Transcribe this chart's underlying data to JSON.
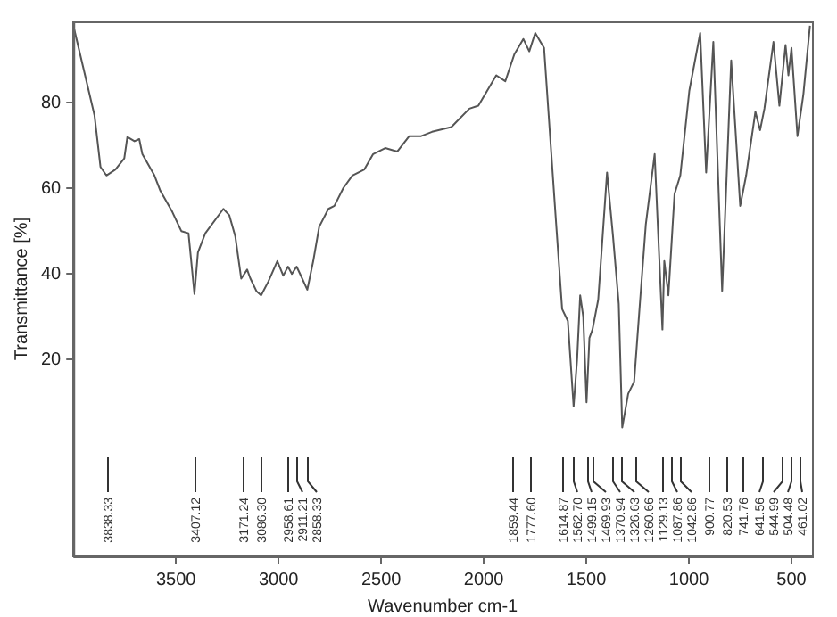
{
  "chart_data": {
    "type": "line",
    "xlabel": "Wavenumber cm-1",
    "ylabel": "Transmittance [%]",
    "xlim": [
      4000,
      400
    ],
    "xticks": [
      3500,
      3000,
      2500,
      2000,
      1500,
      1000,
      500
    ],
    "ylim": [
      -26,
      99
    ],
    "yticks": [
      20,
      40,
      60,
      80
    ],
    "grid": false,
    "legend": false,
    "marker": "none",
    "line_style": "solid",
    "series": [
      {
        "color": "#555555",
        "x": [
          4000,
          3897,
          3868,
          3839,
          3795,
          3752,
          3737,
          3702,
          3679,
          3664,
          3605,
          3576,
          3518,
          3474,
          3439,
          3410,
          3393,
          3357,
          3269,
          3240,
          3211,
          3182,
          3153,
          3138,
          3108,
          3085,
          3050,
          3006,
          2977,
          2954,
          2935,
          2912,
          2895,
          2860,
          2831,
          2802,
          2757,
          2728,
          2684,
          2640,
          2582,
          2539,
          2480,
          2421,
          2363,
          2305,
          2252,
          2158,
          2070,
          2026,
          1939,
          1895,
          1851,
          1807,
          1778,
          1749,
          1706,
          1647,
          1618,
          1590,
          1562,
          1545,
          1530,
          1515,
          1499,
          1485,
          1470,
          1442,
          1399,
          1370,
          1342,
          1325,
          1296,
          1267,
          1239,
          1210,
          1167,
          1129,
          1120,
          1100,
          1070,
          1042,
          998,
          945,
          916,
          881,
          838,
          794,
          750,
          721,
          676,
          653,
          632,
          588,
          559,
          529,
          515,
          500,
          471,
          442,
          410
        ],
        "values": [
          98,
          77,
          65,
          63,
          64.4,
          67,
          72,
          71,
          71.5,
          68,
          63,
          59.4,
          54.5,
          50,
          49.5,
          35.3,
          45,
          49.5,
          55.2,
          53.7,
          48.8,
          38.9,
          41,
          39,
          36,
          35,
          38.2,
          43,
          39.6,
          41.7,
          40,
          41.7,
          40,
          36.3,
          43,
          51,
          55.2,
          55.9,
          60.1,
          63,
          64.4,
          68,
          69.4,
          68.6,
          72.2,
          72.2,
          73.2,
          74.3,
          78.6,
          79.3,
          86.4,
          85,
          91.3,
          94.9,
          92,
          96.3,
          92.8,
          51.6,
          31.8,
          29,
          9,
          20,
          35,
          30,
          10,
          25,
          27,
          34,
          63.7,
          48.8,
          33,
          4.1,
          12,
          14.8,
          33,
          51.6,
          68,
          27,
          43,
          35,
          58.7,
          63,
          82.8,
          96.3,
          63.7,
          94.2,
          36,
          89.9,
          55.9,
          63,
          77.9,
          73.6,
          78.6,
          94.2,
          79.3,
          93.5,
          86.4,
          92.8,
          72.2,
          82,
          98
        ]
      }
    ],
    "annotations": [
      "3838.33",
      "3407.12",
      "3171.24",
      "3086.30",
      "2958.61",
      "2911.21",
      "2858.33",
      "1859.44",
      "1777.60",
      "1614.87",
      "1562.70",
      "1499.15",
      "1469.93",
      "1370.94",
      "1326.63",
      "1260.66",
      "1129.13",
      "1087.86",
      "1042.86",
      "900.77",
      "820.53",
      "741.76",
      "641.56",
      "544.99",
      "504.48",
      "461.02"
    ]
  }
}
